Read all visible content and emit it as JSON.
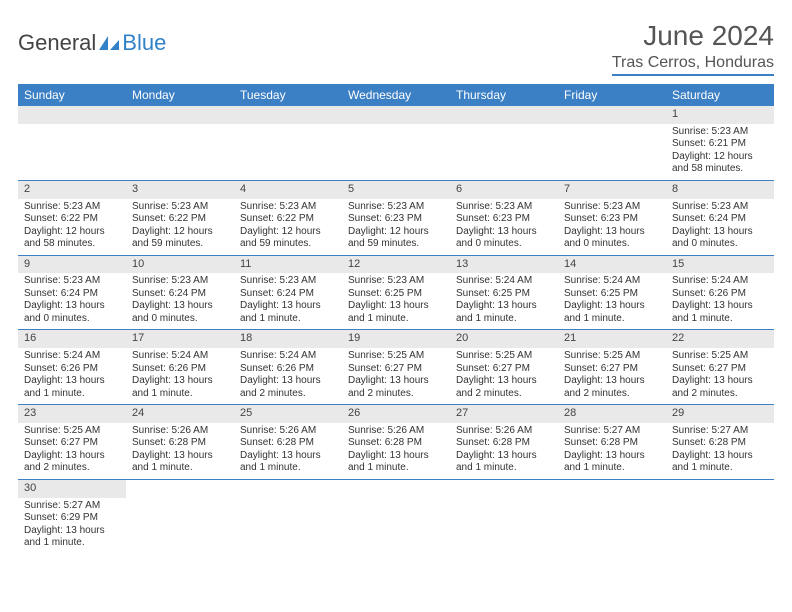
{
  "logo": {
    "text1": "General",
    "text2": "Blue"
  },
  "title": "June 2024",
  "location": "Tras Cerros, Honduras",
  "dayHeaders": [
    "Sunday",
    "Monday",
    "Tuesday",
    "Wednesday",
    "Thursday",
    "Friday",
    "Saturday"
  ],
  "colors": {
    "header_bg": "#3b7fc4",
    "header_text": "#ffffff",
    "rule": "#3b7fc4",
    "daynum_bg": "#e9e9e9",
    "text": "#333333",
    "title_text": "#555555"
  },
  "days": [
    {
      "n": "1",
      "sr": "5:23 AM",
      "ss": "6:21 PM",
      "dl": "12 hours and 58 minutes."
    },
    {
      "n": "2",
      "sr": "5:23 AM",
      "ss": "6:22 PM",
      "dl": "12 hours and 58 minutes."
    },
    {
      "n": "3",
      "sr": "5:23 AM",
      "ss": "6:22 PM",
      "dl": "12 hours and 59 minutes."
    },
    {
      "n": "4",
      "sr": "5:23 AM",
      "ss": "6:22 PM",
      "dl": "12 hours and 59 minutes."
    },
    {
      "n": "5",
      "sr": "5:23 AM",
      "ss": "6:23 PM",
      "dl": "12 hours and 59 minutes."
    },
    {
      "n": "6",
      "sr": "5:23 AM",
      "ss": "6:23 PM",
      "dl": "13 hours and 0 minutes."
    },
    {
      "n": "7",
      "sr": "5:23 AM",
      "ss": "6:23 PM",
      "dl": "13 hours and 0 minutes."
    },
    {
      "n": "8",
      "sr": "5:23 AM",
      "ss": "6:24 PM",
      "dl": "13 hours and 0 minutes."
    },
    {
      "n": "9",
      "sr": "5:23 AM",
      "ss": "6:24 PM",
      "dl": "13 hours and 0 minutes."
    },
    {
      "n": "10",
      "sr": "5:23 AM",
      "ss": "6:24 PM",
      "dl": "13 hours and 0 minutes."
    },
    {
      "n": "11",
      "sr": "5:23 AM",
      "ss": "6:24 PM",
      "dl": "13 hours and 1 minute."
    },
    {
      "n": "12",
      "sr": "5:23 AM",
      "ss": "6:25 PM",
      "dl": "13 hours and 1 minute."
    },
    {
      "n": "13",
      "sr": "5:24 AM",
      "ss": "6:25 PM",
      "dl": "13 hours and 1 minute."
    },
    {
      "n": "14",
      "sr": "5:24 AM",
      "ss": "6:25 PM",
      "dl": "13 hours and 1 minute."
    },
    {
      "n": "15",
      "sr": "5:24 AM",
      "ss": "6:26 PM",
      "dl": "13 hours and 1 minute."
    },
    {
      "n": "16",
      "sr": "5:24 AM",
      "ss": "6:26 PM",
      "dl": "13 hours and 1 minute."
    },
    {
      "n": "17",
      "sr": "5:24 AM",
      "ss": "6:26 PM",
      "dl": "13 hours and 1 minute."
    },
    {
      "n": "18",
      "sr": "5:24 AM",
      "ss": "6:26 PM",
      "dl": "13 hours and 2 minutes."
    },
    {
      "n": "19",
      "sr": "5:25 AM",
      "ss": "6:27 PM",
      "dl": "13 hours and 2 minutes."
    },
    {
      "n": "20",
      "sr": "5:25 AM",
      "ss": "6:27 PM",
      "dl": "13 hours and 2 minutes."
    },
    {
      "n": "21",
      "sr": "5:25 AM",
      "ss": "6:27 PM",
      "dl": "13 hours and 2 minutes."
    },
    {
      "n": "22",
      "sr": "5:25 AM",
      "ss": "6:27 PM",
      "dl": "13 hours and 2 minutes."
    },
    {
      "n": "23",
      "sr": "5:25 AM",
      "ss": "6:27 PM",
      "dl": "13 hours and 2 minutes."
    },
    {
      "n": "24",
      "sr": "5:26 AM",
      "ss": "6:28 PM",
      "dl": "13 hours and 1 minute."
    },
    {
      "n": "25",
      "sr": "5:26 AM",
      "ss": "6:28 PM",
      "dl": "13 hours and 1 minute."
    },
    {
      "n": "26",
      "sr": "5:26 AM",
      "ss": "6:28 PM",
      "dl": "13 hours and 1 minute."
    },
    {
      "n": "27",
      "sr": "5:26 AM",
      "ss": "6:28 PM",
      "dl": "13 hours and 1 minute."
    },
    {
      "n": "28",
      "sr": "5:27 AM",
      "ss": "6:28 PM",
      "dl": "13 hours and 1 minute."
    },
    {
      "n": "29",
      "sr": "5:27 AM",
      "ss": "6:28 PM",
      "dl": "13 hours and 1 minute."
    },
    {
      "n": "30",
      "sr": "5:27 AM",
      "ss": "6:29 PM",
      "dl": "13 hours and 1 minute."
    }
  ],
  "labels": {
    "sunrise": "Sunrise: ",
    "sunset": "Sunset: ",
    "daylight": "Daylight: "
  },
  "firstDayOffset": 6
}
